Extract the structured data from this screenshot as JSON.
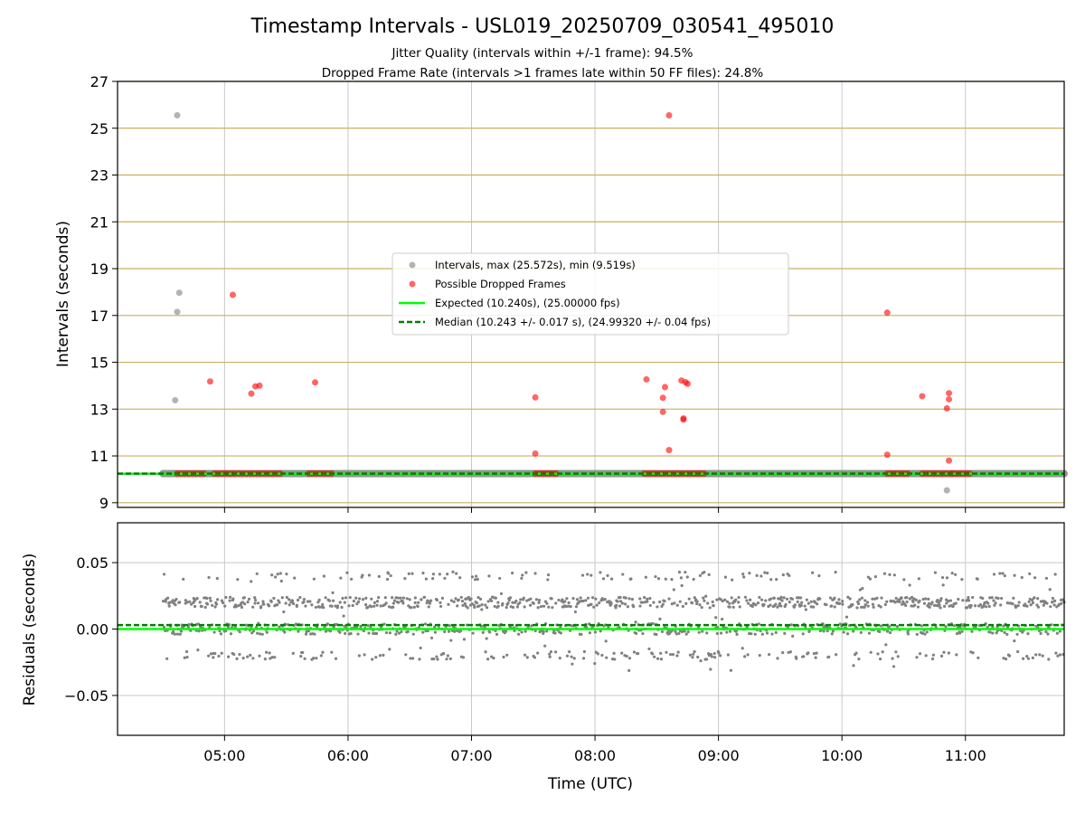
{
  "chart_data": {
    "type": "scatter",
    "title": "Timestamp Intervals - USL019_20250709_030541_495010",
    "subtitle": "Jitter Quality (intervals within +/-1 frame): 94.5%",
    "subtitle2": "Dropped Frame Rate (intervals >1 frames late within 50 FF files): 24.8%",
    "xlabel": "Time (UTC)",
    "x_ticks": [
      "05:00",
      "06:00",
      "07:00",
      "08:00",
      "09:00",
      "10:00",
      "11:00"
    ],
    "xlim": [
      "04:08",
      "11:48"
    ],
    "colors": {
      "intervals": "#808080",
      "dropped": "#ff0000",
      "expected": "#00ff00",
      "median": "#008000",
      "grid_top": "#c8b060",
      "grid": "#c8c8c8"
    },
    "legend": {
      "placement": "center",
      "entries": [
        "Intervals, max (25.572s), min (9.519s)",
        "Possible Dropped Frames",
        "Expected (10.240s), (25.00000 fps)",
        "Median (10.243 +/- 0.017 s), (24.99320 +/- 0.04 fps)"
      ]
    },
    "intervals_panel": {
      "ylabel": "Intervals (seconds)",
      "ylim": [
        8.8,
        27
      ],
      "y_ticks": [
        "9",
        "11",
        "13",
        "15",
        "17",
        "19",
        "21",
        "23",
        "25",
        "27"
      ],
      "expected": 10.24,
      "median": 10.243,
      "baseline_range": [
        "04:30",
        "11:48"
      ],
      "intervals_points": [
        {
          "x": "04:37",
          "y": 25.55
        },
        {
          "x": "04:38",
          "y": 17.97
        },
        {
          "x": "04:37",
          "y": 17.15
        },
        {
          "x": "04:36",
          "y": 13.38
        },
        {
          "x": "10:51",
          "y": 9.53
        }
      ],
      "dropped_points": [
        {
          "x": "04:53",
          "y": 14.18
        },
        {
          "x": "05:04",
          "y": 17.88
        },
        {
          "x": "05:13",
          "y": 13.66
        },
        {
          "x": "05:15",
          "y": 13.97
        },
        {
          "x": "05:17",
          "y": 14.0
        },
        {
          "x": "05:44",
          "y": 14.14
        },
        {
          "x": "07:31",
          "y": 13.5
        },
        {
          "x": "07:31",
          "y": 11.1
        },
        {
          "x": "08:25",
          "y": 14.27
        },
        {
          "x": "08:34",
          "y": 13.94
        },
        {
          "x": "08:33",
          "y": 13.48
        },
        {
          "x": "08:33",
          "y": 12.88
        },
        {
          "x": "08:36",
          "y": 11.25
        },
        {
          "x": "08:36",
          "y": 25.55
        },
        {
          "x": "08:42",
          "y": 14.22
        },
        {
          "x": "08:44",
          "y": 14.15
        },
        {
          "x": "08:45",
          "y": 14.08
        },
        {
          "x": "08:43",
          "y": 12.6
        },
        {
          "x": "08:43",
          "y": 12.55
        },
        {
          "x": "10:22",
          "y": 17.12
        },
        {
          "x": "10:22",
          "y": 11.05
        },
        {
          "x": "10:39",
          "y": 13.55
        },
        {
          "x": "10:52",
          "y": 13.68
        },
        {
          "x": "10:52",
          "y": 13.42
        },
        {
          "x": "10:51",
          "y": 13.03
        },
        {
          "x": "10:52",
          "y": 10.8
        }
      ],
      "dropped_clusters": [
        [
          "04:37",
          "04:50"
        ],
        [
          "04:55",
          "05:05"
        ],
        [
          "05:07",
          "05:27"
        ],
        [
          "05:41",
          "05:52"
        ],
        [
          "07:31",
          "07:41"
        ],
        [
          "08:24",
          "08:53"
        ],
        [
          "10:22",
          "10:32"
        ],
        [
          "10:39",
          "10:53"
        ],
        [
          "10:54",
          "11:02"
        ]
      ]
    },
    "residuals_panel": {
      "ylabel": "Residuals (seconds)",
      "ylim": [
        -0.08,
        0.08
      ],
      "y_ticks": [
        "0.05",
        "0.00",
        "−0.05"
      ],
      "expected": 0.0,
      "median": 0.003,
      "x_range": [
        "04:30",
        "11:48"
      ],
      "bands": [
        0.02,
        0.0,
        -0.02,
        0.04
      ]
    }
  }
}
